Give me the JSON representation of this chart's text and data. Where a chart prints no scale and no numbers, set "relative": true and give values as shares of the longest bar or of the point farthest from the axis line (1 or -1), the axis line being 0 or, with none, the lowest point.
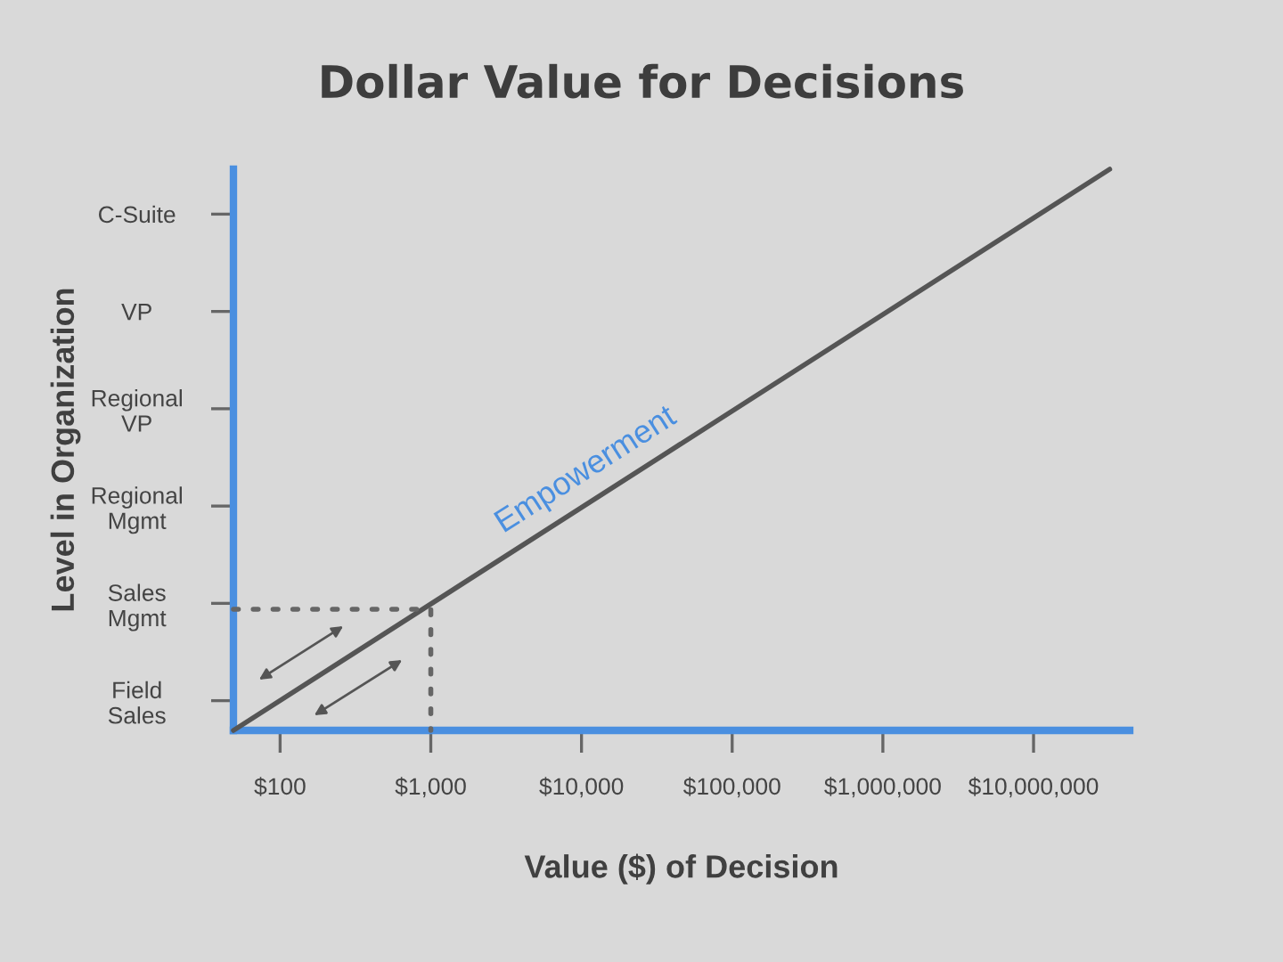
{
  "chart_data": {
    "type": "line",
    "title": "Dollar Value for Decisions",
    "xlabel": "Value ($) of Decision",
    "ylabel": "Level in Organization",
    "log": "x",
    "xlim": [
      49,
      43500000
    ],
    "xticks": [
      {
        "value": 100,
        "label": "$100"
      },
      {
        "value": 1000,
        "label": "$1,000"
      },
      {
        "value": 10000,
        "label": "$10,000"
      },
      {
        "value": 100000,
        "label": "$100,000"
      },
      {
        "value": 1000000,
        "label": "$1,000,000"
      },
      {
        "value": 10000000,
        "label": "$10,000,000"
      }
    ],
    "relative": true,
    "y_categories": [
      "C-Suite",
      "VP",
      "Regional\nVP",
      "Regional\nMgmt",
      "Sales\nMgmt",
      "Field\nSales"
    ],
    "grid": false,
    "series": [
      {
        "color": "#555555",
        "line_style": "solid",
        "x": [
          49,
          32000000
        ],
        "values": [
          0,
          1
        ]
      },
      {
        "color": "#666666",
        "line_style": "dotted",
        "x": [
          49,
          1000,
          1000
        ],
        "values": [
          0.216,
          0.216,
          0
        ]
      }
    ],
    "annotations": [
      "Empowerment"
    ]
  }
}
